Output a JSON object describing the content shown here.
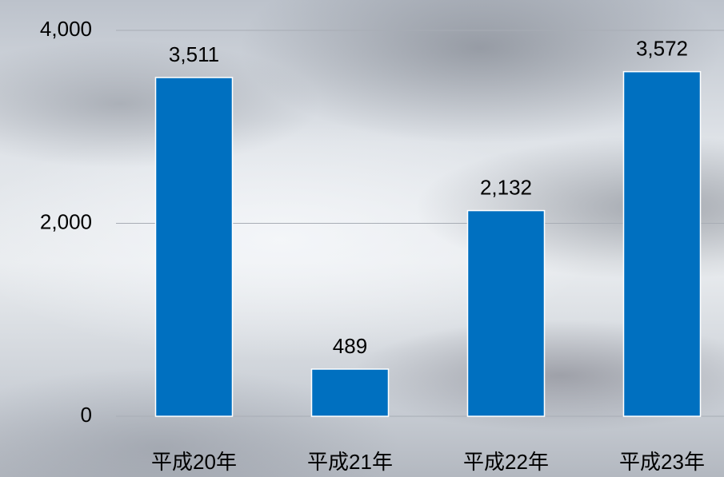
{
  "chart_data": {
    "type": "bar",
    "categories": [
      "平成20年",
      "平成21年",
      "平成22年",
      "平成23年"
    ],
    "values": [
      3511,
      489,
      2132,
      3572
    ],
    "value_labels": [
      "3,511",
      "489",
      "2,132",
      "3,572"
    ],
    "color": "#0070c0",
    "ylim": [
      0,
      4000
    ],
    "yticks": [
      {
        "value": 0,
        "label": "0"
      },
      {
        "value": 2000,
        "label": "2,000"
      },
      {
        "value": 4000,
        "label": "4,000"
      }
    ],
    "grid": true
  }
}
